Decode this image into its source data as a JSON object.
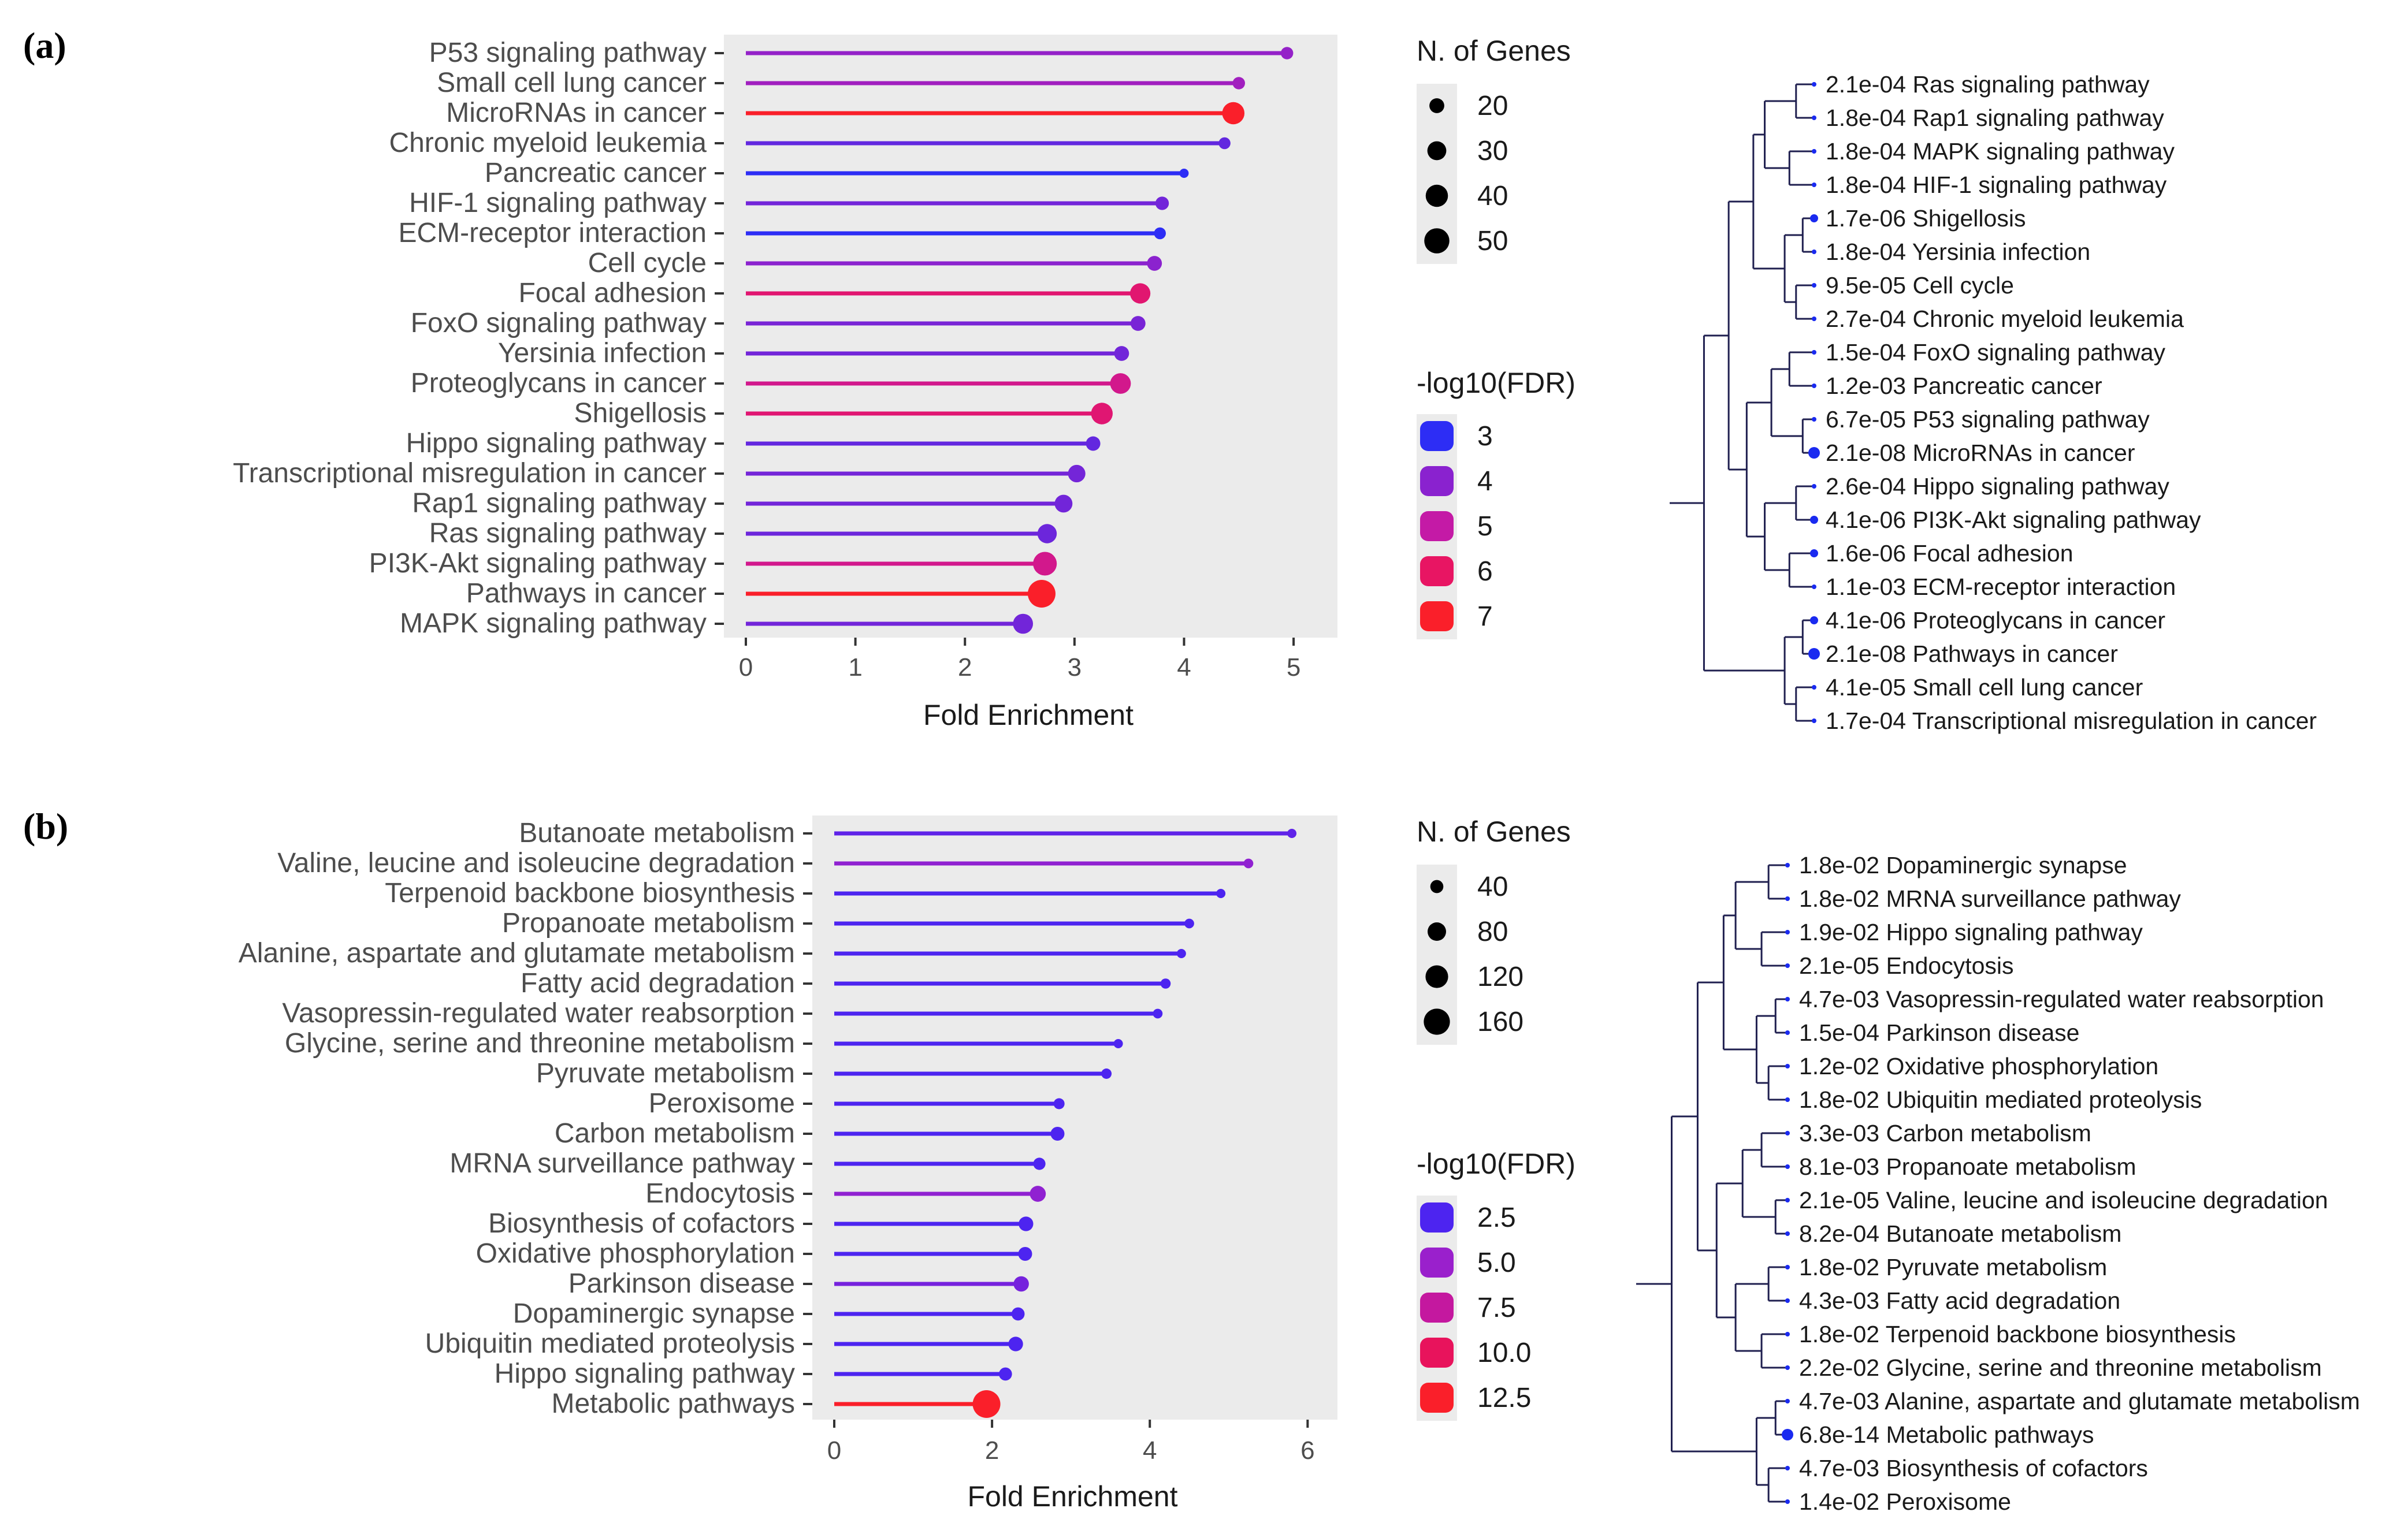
{
  "chart_data": [
    {
      "panel_label": "(a)",
      "type": "lollipop",
      "xlabel": "Fold Enrichment",
      "xlim": [
        0,
        5.2
      ],
      "xticks": [
        0,
        1,
        2,
        3,
        4,
        5
      ],
      "categories": [
        "P53 signaling pathway",
        "Small cell lung cancer",
        "MicroRNAs in cancer",
        "Chronic myeloid leukemia",
        "Pancreatic cancer",
        "HIF-1 signaling pathway",
        "ECM-receptor interaction",
        "Cell cycle",
        "Focal adhesion",
        "FoxO signaling pathway",
        "Yersinia infection",
        "Proteoglycans in cancer",
        "Shigellosis",
        "Hippo signaling pathway",
        "Transcriptional misregulation in cancer",
        "Rap1 signaling pathway",
        "Ras signaling pathway",
        "PI3K-Akt signaling pathway",
        "Pathways in cancer",
        "MAPK signaling pathway"
      ],
      "fold_enrichment": [
        4.94,
        4.5,
        4.45,
        4.37,
        4.0,
        3.8,
        3.78,
        3.73,
        3.6,
        3.58,
        3.43,
        3.42,
        3.25,
        3.17,
        3.02,
        2.9,
        2.75,
        2.73,
        2.7,
        2.53
      ],
      "neg_log10_fdr": [
        4.17,
        4.39,
        7.68,
        3.57,
        2.93,
        3.74,
        2.96,
        4.02,
        5.8,
        3.82,
        3.74,
        5.39,
        5.77,
        3.58,
        3.76,
        3.74,
        3.68,
        5.39,
        7.68,
        3.74
      ],
      "n_genes": [
        15,
        15,
        40,
        14,
        10,
        17,
        14,
        20,
        34,
        20,
        20,
        35,
        38,
        19,
        26,
        27,
        31,
        45,
        60,
        33
      ],
      "size_legend": {
        "title": "N. of Genes",
        "values": [
          20,
          30,
          40,
          50
        ]
      },
      "color_legend": {
        "title": "-log10(FDR)",
        "values": [
          3,
          4,
          5,
          6,
          7
        ],
        "colors": [
          "#2d2df5",
          "#8a22cf",
          "#c41aa6",
          "#e81563",
          "#fa1f2a"
        ]
      },
      "dendrogram_labels": [
        {
          "fdr": "2.1e-04",
          "name": "Ras signaling pathway"
        },
        {
          "fdr": "1.8e-04",
          "name": "Rap1 signaling pathway"
        },
        {
          "fdr": "1.8e-04",
          "name": "MAPK signaling pathway"
        },
        {
          "fdr": "1.8e-04",
          "name": "HIF-1 signaling pathway"
        },
        {
          "fdr": "1.7e-06",
          "name": "Shigellosis"
        },
        {
          "fdr": "1.8e-04",
          "name": "Yersinia infection"
        },
        {
          "fdr": "9.5e-05",
          "name": "Cell cycle"
        },
        {
          "fdr": "2.7e-04",
          "name": "Chronic myeloid leukemia"
        },
        {
          "fdr": "1.5e-04",
          "name": "FoxO signaling pathway"
        },
        {
          "fdr": "1.2e-03",
          "name": "Pancreatic cancer"
        },
        {
          "fdr": "6.7e-05",
          "name": "P53 signaling pathway"
        },
        {
          "fdr": "2.1e-08",
          "name": "MicroRNAs in cancer"
        },
        {
          "fdr": "2.6e-04",
          "name": "Hippo signaling pathway"
        },
        {
          "fdr": "4.1e-06",
          "name": "PI3K-Akt signaling pathway"
        },
        {
          "fdr": "1.6e-06",
          "name": "Focal adhesion"
        },
        {
          "fdr": "1.1e-03",
          "name": "ECM-receptor interaction"
        },
        {
          "fdr": "4.1e-06",
          "name": "Proteoglycans in cancer"
        },
        {
          "fdr": "2.1e-08",
          "name": "Pathways in cancer"
        },
        {
          "fdr": "4.1e-05",
          "name": "Small cell lung cancer"
        },
        {
          "fdr": "1.7e-04",
          "name": "Transcriptional misregulation in cancer"
        }
      ]
    },
    {
      "panel_label": "(b)",
      "type": "lollipop",
      "xlabel": "Fold Enrichment",
      "xlim": [
        0,
        6.1
      ],
      "xticks": [
        0,
        2,
        4,
        6
      ],
      "categories": [
        "Butanoate metabolism",
        "Valine, leucine and isoleucine degradation",
        "Terpenoid backbone biosynthesis",
        "Propanoate metabolism",
        "Alanine, aspartate and glutamate metabolism",
        "Fatty acid degradation",
        "Vasopressin-regulated water reabsorption",
        "Glycine, serine and threonine metabolism",
        "Pyruvate metabolism",
        "Peroxisome",
        "Carbon metabolism",
        "MRNA surveillance pathway",
        "Endocytosis",
        "Biosynthesis of cofactors",
        "Oxidative phosphorylation",
        "Parkinson disease",
        "Dopaminergic synapse",
        "Ubiquitin mediated proteolysis",
        "Hippo signaling pathway",
        "Metabolic pathways"
      ],
      "fold_enrichment": [
        5.8,
        5.25,
        4.9,
        4.5,
        4.4,
        4.2,
        4.1,
        3.6,
        3.45,
        2.85,
        2.83,
        2.6,
        2.58,
        2.43,
        2.42,
        2.37,
        2.33,
        2.3,
        2.17,
        1.93
      ],
      "neg_log10_fdr": [
        3.09,
        4.68,
        1.74,
        2.09,
        2.33,
        2.37,
        2.33,
        1.66,
        1.74,
        1.85,
        2.48,
        1.74,
        4.68,
        2.33,
        1.92,
        3.82,
        1.74,
        1.74,
        1.72,
        13.17
      ],
      "n_genes": [
        20,
        22,
        18,
        22,
        20,
        24,
        22,
        20,
        25,
        28,
        45,
        35,
        60,
        50,
        45,
        55,
        40,
        50,
        40,
        180
      ],
      "size_legend": {
        "title": "N. of Genes",
        "values": [
          40,
          80,
          120,
          160
        ]
      },
      "color_legend": {
        "title": "-log10(FDR)",
        "values": [
          "2.5",
          "5.0",
          "7.5",
          "10.0",
          "12.5"
        ],
        "colors": [
          "#4d24f0",
          "#9a20cc",
          "#c4189f",
          "#e8135c",
          "#fa1f2a"
        ]
      },
      "dendrogram_labels": [
        {
          "fdr": "1.8e-02",
          "name": "Dopaminergic synapse"
        },
        {
          "fdr": "1.8e-02",
          "name": "MRNA surveillance pathway"
        },
        {
          "fdr": "1.9e-02",
          "name": "Hippo signaling pathway"
        },
        {
          "fdr": "2.1e-05",
          "name": "Endocytosis"
        },
        {
          "fdr": "4.7e-03",
          "name": "Vasopressin-regulated water reabsorption"
        },
        {
          "fdr": "1.5e-04",
          "name": "Parkinson disease"
        },
        {
          "fdr": "1.2e-02",
          "name": "Oxidative phosphorylation"
        },
        {
          "fdr": "1.8e-02",
          "name": "Ubiquitin mediated proteolysis"
        },
        {
          "fdr": "3.3e-03",
          "name": "Carbon metabolism"
        },
        {
          "fdr": "8.1e-03",
          "name": "Propanoate metabolism"
        },
        {
          "fdr": "2.1e-05",
          "name": "Valine, leucine and isoleucine degradation"
        },
        {
          "fdr": "8.2e-04",
          "name": "Butanoate metabolism"
        },
        {
          "fdr": "1.8e-02",
          "name": "Pyruvate metabolism"
        },
        {
          "fdr": "4.3e-03",
          "name": "Fatty acid degradation"
        },
        {
          "fdr": "1.8e-02",
          "name": "Terpenoid backbone biosynthesis"
        },
        {
          "fdr": "2.2e-02",
          "name": "Glycine, serine and threonine metabolism"
        },
        {
          "fdr": "4.7e-03",
          "name": "Alanine, aspartate and glutamate metabolism"
        },
        {
          "fdr": "6.8e-14",
          "name": "Metabolic pathways"
        },
        {
          "fdr": "4.7e-03",
          "name": "Biosynthesis of cofactors"
        },
        {
          "fdr": "1.4e-02",
          "name": "Peroxisome"
        }
      ]
    }
  ]
}
